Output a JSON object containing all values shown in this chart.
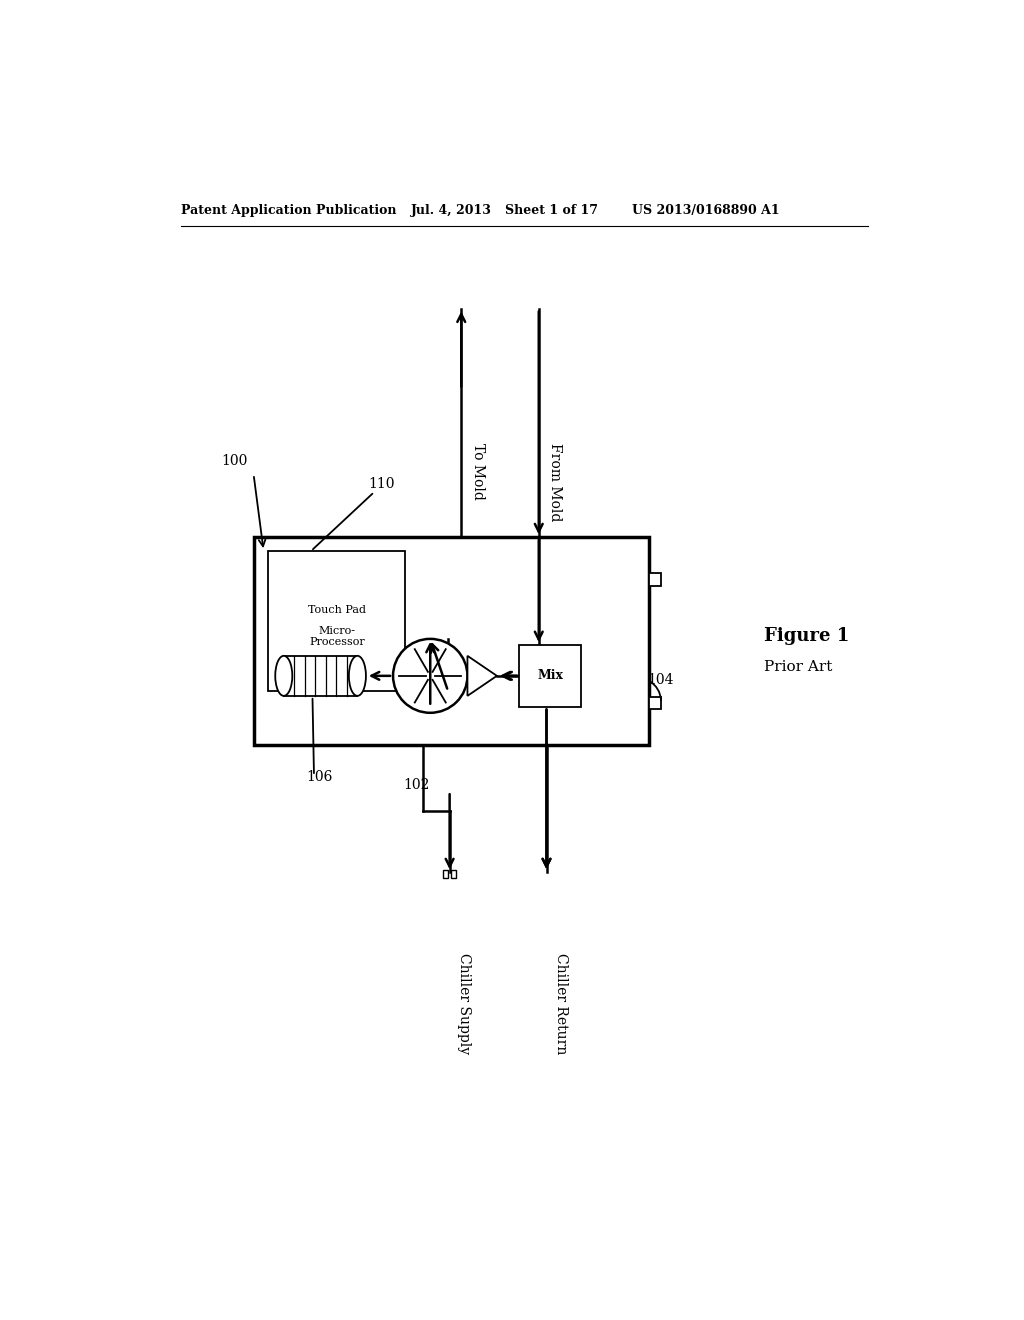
{
  "bg_color": "#ffffff",
  "header_text": "Patent Application Publication",
  "header_date": "Jul. 4, 2013",
  "header_sheet": "Sheet 1 of 17",
  "header_patent": "US 2013/0168890 A1",
  "figure_label": "Figure 1",
  "figure_sublabel": "Prior Art",
  "label_100": "100",
  "label_110": "110",
  "label_102": "102",
  "label_104": "104",
  "label_106": "106",
  "text_touch_pad": "Touch Pad",
  "text_micro_processor": "Micro-\nProcessor",
  "text_mix": "Mix",
  "text_to_mold": "To Mold",
  "text_from_mold": "From Mold",
  "text_chiller_supply": "Chiller Supply",
  "text_chiller_return": "Chiller Return"
}
